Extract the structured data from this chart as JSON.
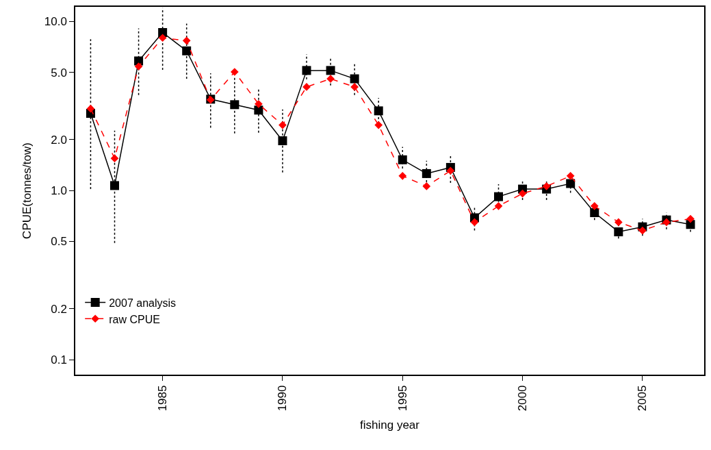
{
  "chart_data": {
    "type": "line",
    "xlabel": "fishing year",
    "ylabel": "CPUE(tonnes/tow)",
    "log": "y",
    "x": [
      1982,
      1983,
      1984,
      1985,
      1986,
      1987,
      1988,
      1989,
      1990,
      1991,
      1992,
      1993,
      1994,
      1995,
      1996,
      1997,
      1998,
      1999,
      2000,
      2001,
      2002,
      2003,
      2004,
      2005,
      2006,
      2007
    ],
    "series": [
      {
        "name": "2007 analysis",
        "color": "#000000",
        "marker": "square",
        "line_style": "solid",
        "values": [
          2.86,
          1.07,
          5.84,
          8.6,
          6.7,
          3.47,
          3.22,
          2.99,
          1.97,
          5.13,
          5.13,
          4.58,
          2.96,
          1.52,
          1.26,
          1.37,
          0.69,
          0.92,
          1.02,
          1.02,
          1.1,
          0.74,
          0.57,
          0.61,
          0.67,
          0.63
        ],
        "errors": [
          [
            1.02,
            7.85
          ],
          [
            0.49,
            2.26
          ],
          [
            3.67,
            9.1
          ],
          [
            5.17,
            12.0
          ],
          [
            4.58,
            9.7
          ],
          [
            2.35,
            4.94
          ],
          [
            2.18,
            4.7
          ],
          [
            2.2,
            3.99
          ],
          [
            1.28,
            3.02
          ],
          [
            4.55,
            6.4
          ],
          [
            4.18,
            6.17
          ],
          [
            3.67,
            5.73
          ],
          [
            2.5,
            3.53
          ],
          [
            1.35,
            1.81
          ],
          [
            1.12,
            1.5
          ],
          [
            1.11,
            1.62
          ],
          [
            0.58,
            0.81
          ],
          [
            0.81,
            1.09
          ],
          [
            0.88,
            1.16
          ],
          [
            0.88,
            1.16
          ],
          [
            0.97,
            1.16
          ],
          [
            0.67,
            0.84
          ],
          [
            0.52,
            0.63
          ],
          [
            0.54,
            0.68
          ],
          [
            0.59,
            0.74
          ],
          [
            0.57,
            0.68
          ]
        ]
      },
      {
        "name": "raw CPUE",
        "color": "#ff0000",
        "marker": "diamond",
        "line_style": "dashed",
        "values": [
          3.05,
          1.55,
          5.42,
          8.0,
          7.7,
          3.44,
          5.03,
          3.25,
          2.44,
          4.1,
          4.58,
          4.1,
          2.44,
          1.22,
          1.06,
          1.31,
          0.65,
          0.81,
          0.96,
          1.06,
          1.22,
          0.81,
          0.65,
          0.58,
          0.65,
          0.68
        ]
      }
    ],
    "xlim": [
      1981.36,
      2007.57
    ],
    "xticks": [
      1985,
      1990,
      1995,
      2000,
      2005
    ],
    "ylim": [
      0.0815,
      12.2
    ],
    "yticks": [
      {
        "value": 0.1,
        "label": "0.1"
      },
      0.2,
      0.5,
      {
        "value": 1,
        "label": "1.0"
      },
      {
        "value": 2,
        "label": "2.0"
      },
      {
        "value": 5,
        "label": "5.0"
      },
      {
        "value": 10,
        "label": "10.0"
      }
    ],
    "legend": "bottom left"
  }
}
